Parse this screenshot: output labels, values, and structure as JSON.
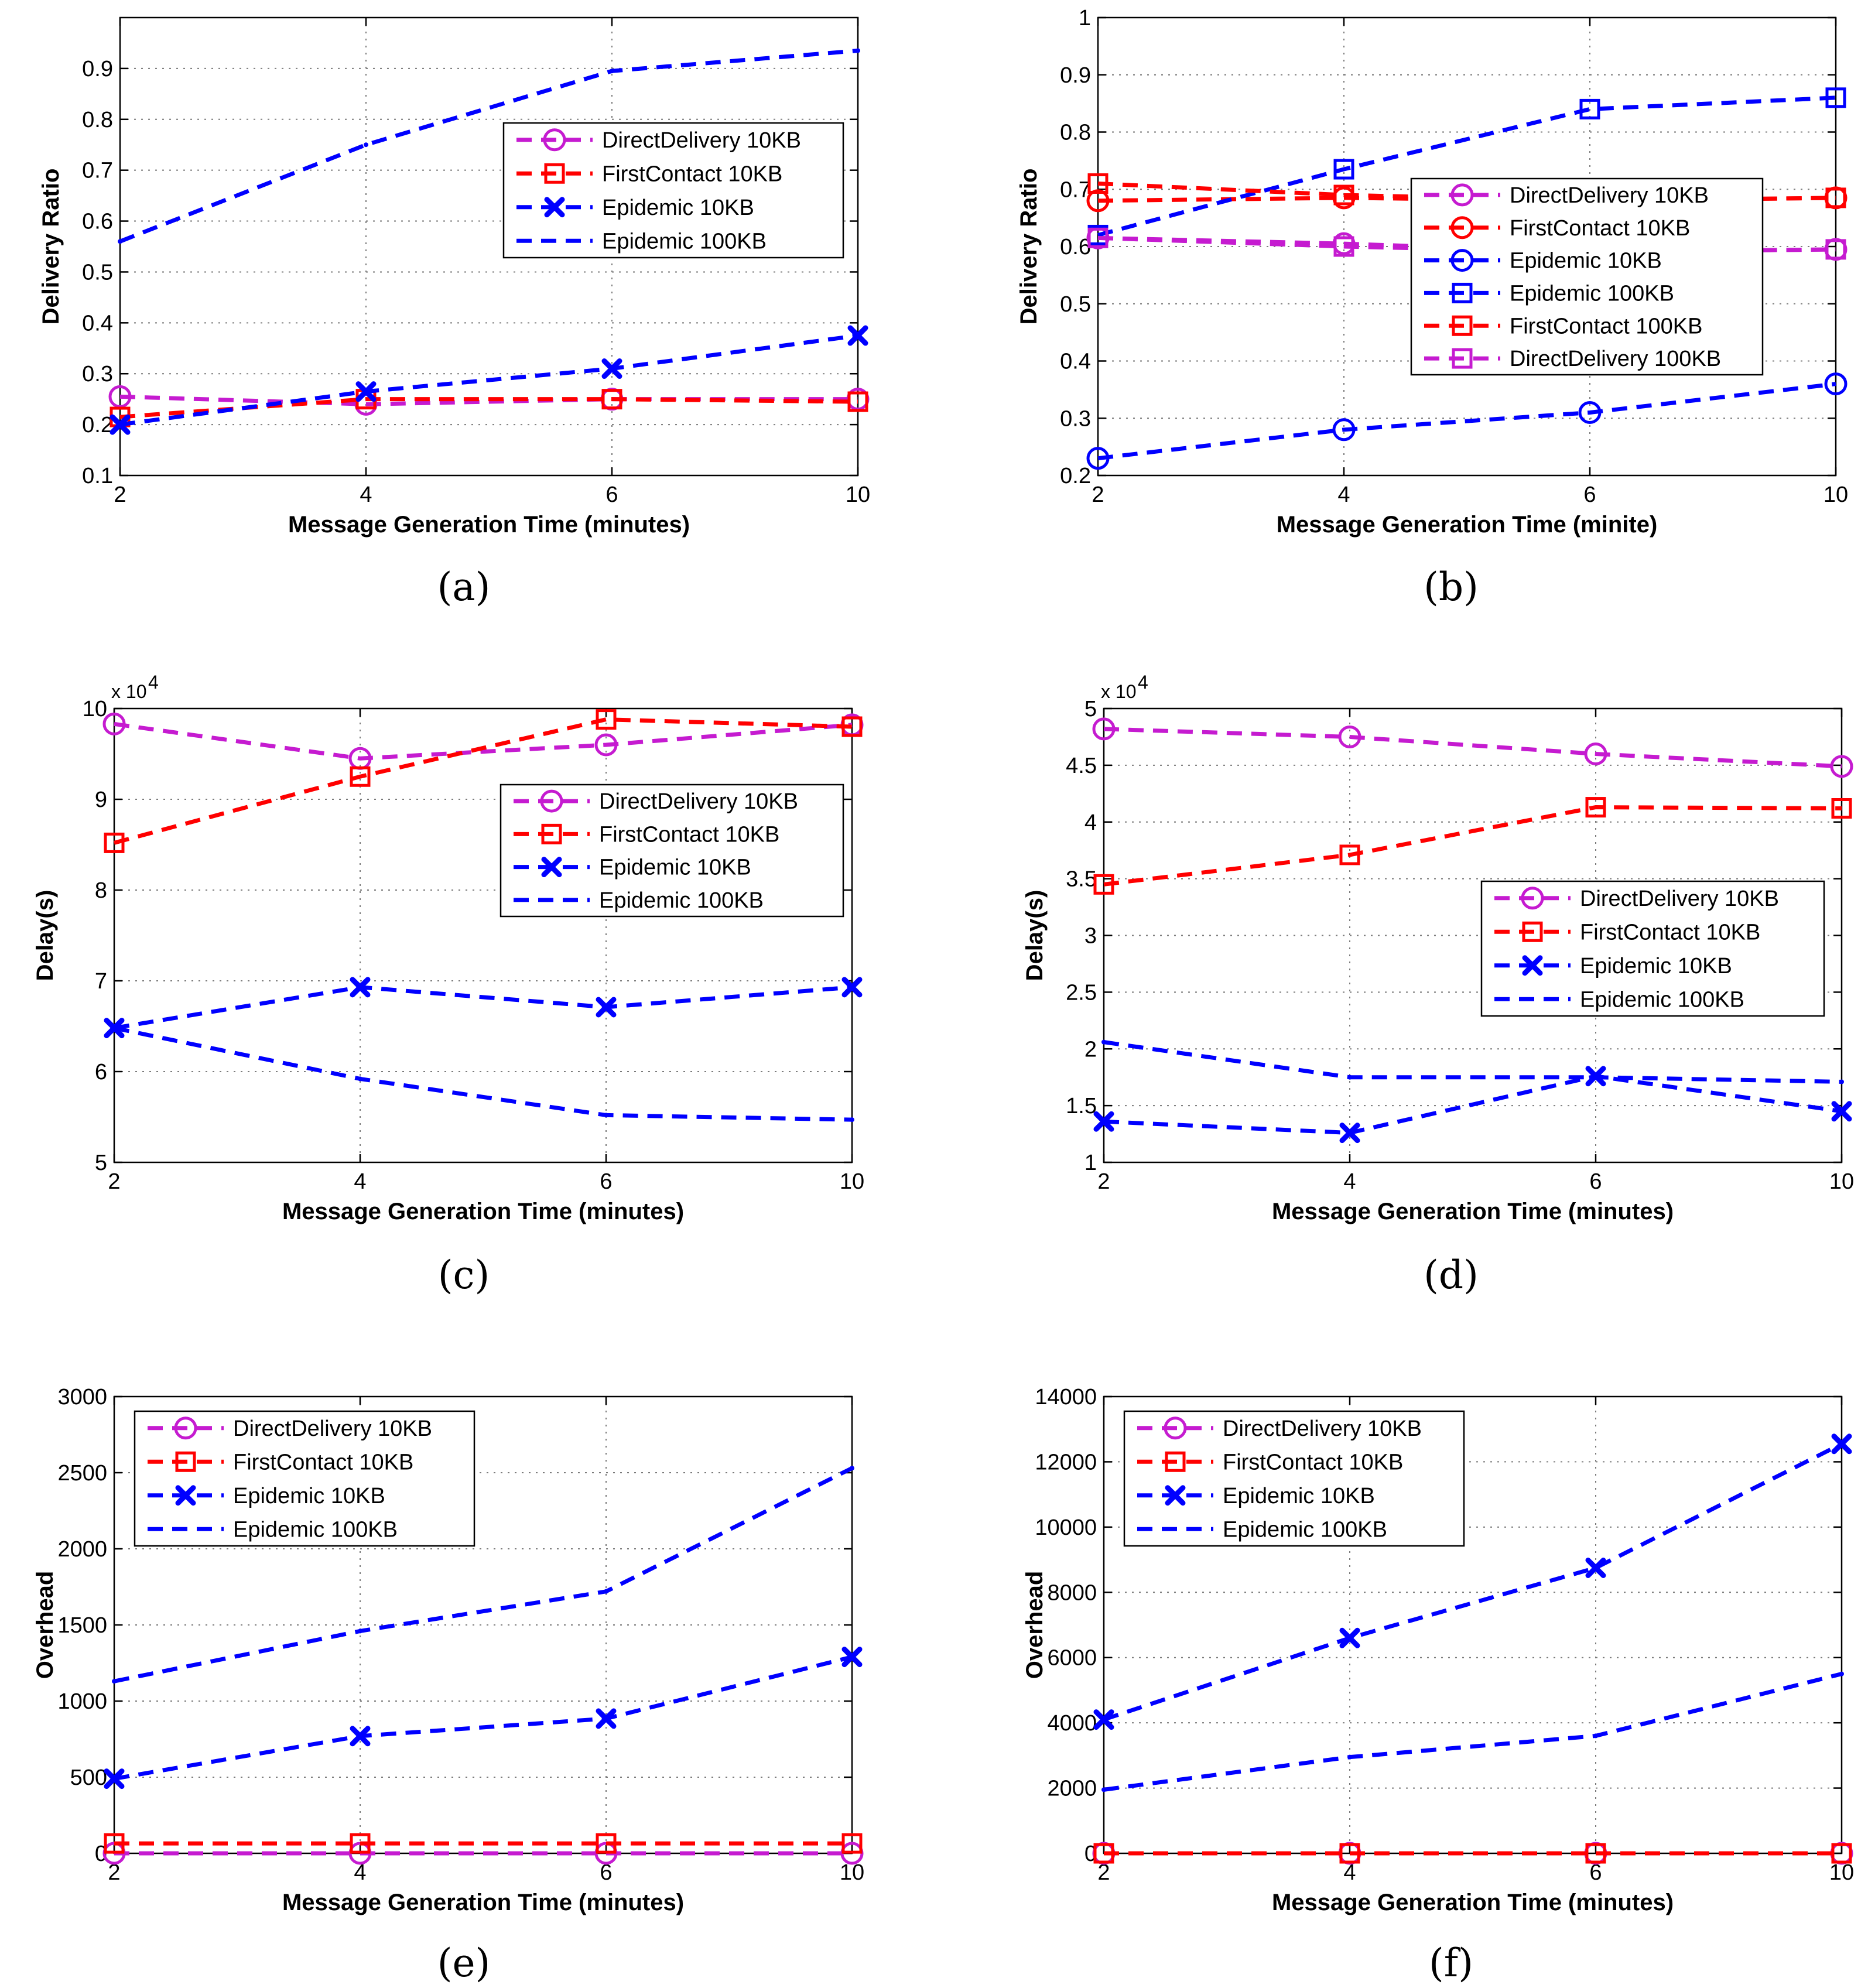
{
  "chart_data": [
    {
      "id": "a",
      "type": "line",
      "caption": "(a)",
      "xlabel": "Message Generation Time (minutes)",
      "ylabel": "Delivery Ratio",
      "x": [
        2,
        4,
        6,
        10
      ],
      "xticks": [
        "2",
        "4",
        "6",
        "10"
      ],
      "ylim": [
        0.1,
        1.0
      ],
      "yticks": [
        0.1,
        0.2,
        0.3,
        0.4,
        0.5,
        0.6,
        0.7,
        0.8,
        0.9
      ],
      "ytick_labels": [
        "0.1",
        "0.2",
        "0.3",
        "0.4",
        "0.5",
        "0.6",
        "0.7",
        "0.8",
        "0.9"
      ],
      "exponent_label": "",
      "legend_position": "center-right",
      "series": [
        {
          "name": "DirectDelivery 10KB",
          "color": "#c51bd0",
          "marker": "circle",
          "values": [
            0.255,
            0.24,
            0.25,
            0.25
          ]
        },
        {
          "name": "FirstContact 10KB",
          "color": "#ff0000",
          "marker": "square",
          "values": [
            0.215,
            0.25,
            0.25,
            0.245
          ]
        },
        {
          "name": "Epidemic 10KB",
          "color": "#0000ff",
          "marker": "x",
          "values": [
            0.2,
            0.265,
            0.31,
            0.375
          ]
        },
        {
          "name": "Epidemic 100KB",
          "color": "#0000ff",
          "marker": "dot",
          "values": [
            0.56,
            0.75,
            0.895,
            0.935
          ]
        }
      ]
    },
    {
      "id": "b",
      "type": "line",
      "caption": "(b)",
      "xlabel": "Message Generation Time (minite)",
      "ylabel": "Delivery Ratio",
      "x": [
        2,
        4,
        6,
        10
      ],
      "xticks": [
        "2",
        "4",
        "6",
        "10"
      ],
      "ylim": [
        0.2,
        1.0
      ],
      "yticks": [
        0.2,
        0.3,
        0.4,
        0.5,
        0.6,
        0.7,
        0.8,
        0.9,
        1.0
      ],
      "ytick_labels": [
        "0.2",
        "0.3",
        "0.4",
        "0.5",
        "0.6",
        "0.7",
        "0.8",
        "0.9",
        "1"
      ],
      "exponent_label": "",
      "legend_position": "center-right",
      "series": [
        {
          "name": "DirectDelivery 10KB",
          "color": "#c51bd0",
          "marker": "circle",
          "values": [
            0.615,
            0.605,
            0.59,
            0.595
          ]
        },
        {
          "name": "FirstContact 10KB",
          "color": "#ff0000",
          "marker": "circle",
          "values": [
            0.68,
            0.685,
            0.68,
            0.685
          ]
        },
        {
          "name": "Epidemic 10KB",
          "color": "#0000ff",
          "marker": "circle",
          "values": [
            0.23,
            0.28,
            0.31,
            0.36
          ]
        },
        {
          "name": "Epidemic 100KB",
          "color": "#0000ff",
          "marker": "square",
          "values": [
            0.62,
            0.735,
            0.84,
            0.86
          ]
        },
        {
          "name": "FirstContact 100KB",
          "color": "#ff0000",
          "marker": "square",
          "values": [
            0.71,
            0.69,
            0.68,
            0.685
          ]
        },
        {
          "name": "DirectDelivery 100KB",
          "color": "#c51bd0",
          "marker": "square",
          "values": [
            0.615,
            0.6,
            0.59,
            0.595
          ]
        }
      ]
    },
    {
      "id": "c",
      "type": "line",
      "caption": "(c)",
      "xlabel": "Message Generation Time (minutes)",
      "ylabel": "Delay(s)",
      "x": [
        2,
        4,
        6,
        10
      ],
      "xticks": [
        "2",
        "4",
        "6",
        "10"
      ],
      "ylim": [
        5,
        10
      ],
      "yticks": [
        5,
        6,
        7,
        8,
        9,
        10
      ],
      "ytick_labels": [
        "5",
        "6",
        "7",
        "8",
        "9",
        "10"
      ],
      "exponent_label": "x 10",
      "exponent_power": "4",
      "legend_position": "center-right",
      "series": [
        {
          "name": "DirectDelivery 10KB",
          "color": "#c51bd0",
          "marker": "circle",
          "values": [
            9.83,
            9.45,
            9.6,
            9.82
          ]
        },
        {
          "name": "FirstContact 10KB",
          "color": "#ff0000",
          "marker": "square",
          "values": [
            8.52,
            9.25,
            9.88,
            9.8
          ]
        },
        {
          "name": "Epidemic 10KB",
          "color": "#0000ff",
          "marker": "x",
          "values": [
            6.48,
            6.93,
            6.71,
            6.93
          ]
        },
        {
          "name": "Epidemic 100KB",
          "color": "#0000ff",
          "marker": "dot",
          "values": [
            6.48,
            5.92,
            5.52,
            5.47
          ]
        }
      ]
    },
    {
      "id": "d",
      "type": "line",
      "caption": "(d)",
      "xlabel": "Message Generation Time (minutes)",
      "ylabel": "Delay(s)",
      "x": [
        2,
        4,
        6,
        10
      ],
      "xticks": [
        "2",
        "4",
        "6",
        "10"
      ],
      "ylim": [
        1,
        5
      ],
      "yticks": [
        1,
        1.5,
        2,
        2.5,
        3,
        3.5,
        4,
        4.5,
        5
      ],
      "ytick_labels": [
        "1",
        "1.5",
        "2",
        "2.5",
        "3",
        "3.5",
        "4",
        "4.5",
        "5"
      ],
      "exponent_label": "x 10",
      "exponent_power": "4",
      "legend_position": "center-right",
      "series": [
        {
          "name": "DirectDelivery 10KB",
          "color": "#c51bd0",
          "marker": "circle",
          "values": [
            4.82,
            4.75,
            4.6,
            4.49
          ]
        },
        {
          "name": "FirstContact 10KB",
          "color": "#ff0000",
          "marker": "square",
          "values": [
            3.45,
            3.71,
            4.13,
            4.12
          ]
        },
        {
          "name": "Epidemic 10KB",
          "color": "#0000ff",
          "marker": "x",
          "values": [
            1.36,
            1.26,
            1.76,
            1.45
          ]
        },
        {
          "name": "Epidemic 100KB",
          "color": "#0000ff",
          "marker": "dot",
          "values": [
            2.06,
            1.75,
            1.75,
            1.71
          ]
        }
      ]
    },
    {
      "id": "e",
      "type": "line",
      "caption": "(e)",
      "xlabel": "Message Generation Time (minutes)",
      "ylabel": "Overhead",
      "x": [
        2,
        4,
        6,
        10
      ],
      "xticks": [
        "2",
        "4",
        "6",
        "10"
      ],
      "ylim": [
        0,
        3000
      ],
      "yticks": [
        0,
        500,
        1000,
        1500,
        2000,
        2500,
        3000
      ],
      "ytick_labels": [
        "0",
        "500",
        "1000",
        "1500",
        "2000",
        "2500",
        "3000"
      ],
      "exponent_label": "",
      "legend_position": "top-left",
      "series": [
        {
          "name": "DirectDelivery 10KB",
          "color": "#c51bd0",
          "marker": "circle",
          "values": [
            0,
            0,
            0,
            0
          ]
        },
        {
          "name": "FirstContact 10KB",
          "color": "#ff0000",
          "marker": "square",
          "values": [
            65,
            65,
            65,
            65
          ]
        },
        {
          "name": "Epidemic 10KB",
          "color": "#0000ff",
          "marker": "x",
          "values": [
            490,
            770,
            885,
            1290
          ]
        },
        {
          "name": "Epidemic 100KB",
          "color": "#0000ff",
          "marker": "dot",
          "values": [
            1130,
            1460,
            1720,
            2530
          ]
        }
      ]
    },
    {
      "id": "f",
      "type": "line",
      "caption": "(f)",
      "xlabel": "Message Generation Time (minutes)",
      "ylabel": "Overhead",
      "x": [
        2,
        4,
        6,
        10
      ],
      "xticks": [
        "2",
        "4",
        "6",
        "10"
      ],
      "ylim": [
        0,
        14000
      ],
      "yticks": [
        0,
        2000,
        4000,
        6000,
        8000,
        10000,
        12000,
        14000
      ],
      "ytick_labels": [
        "0",
        "2000",
        "4000",
        "6000",
        "8000",
        "10000",
        "12000",
        "14000"
      ],
      "exponent_label": "",
      "legend_position": "top-left",
      "series": [
        {
          "name": "DirectDelivery 10KB",
          "color": "#c51bd0",
          "marker": "circle",
          "values": [
            0,
            0,
            0,
            0
          ]
        },
        {
          "name": "FirstContact 10KB",
          "color": "#ff0000",
          "marker": "square",
          "values": [
            0,
            0,
            0,
            0
          ]
        },
        {
          "name": "Epidemic 10KB",
          "color": "#0000ff",
          "marker": "x",
          "values": [
            4100,
            6600,
            8750,
            12550
          ]
        },
        {
          "name": "Epidemic 100KB",
          "color": "#0000ff",
          "marker": "dot",
          "values": [
            1950,
            2950,
            3600,
            5500
          ]
        }
      ]
    }
  ]
}
